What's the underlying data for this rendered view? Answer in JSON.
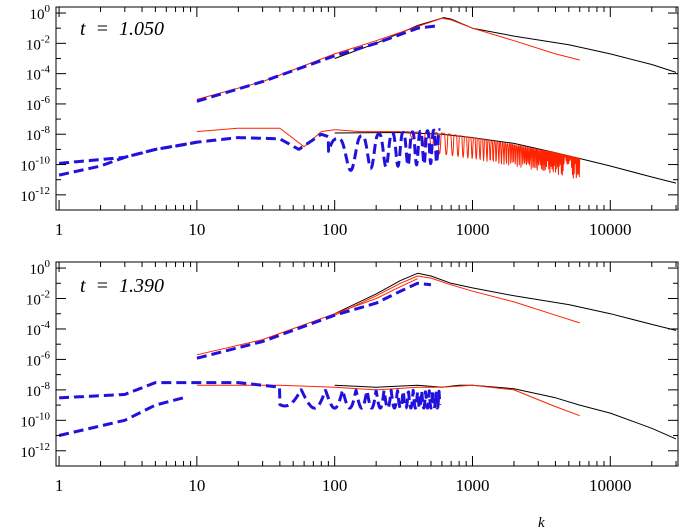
{
  "colors": {
    "black": "#000000",
    "red": "#ff2200",
    "blue": "#2211dd"
  },
  "chart_data": [
    {
      "type": "line",
      "annotation": "t  =  1.050",
      "xscale": "log",
      "yscale": "log",
      "xlim": [
        0.95,
        31000
      ],
      "ylim": [
        1e-13,
        2.5
      ],
      "grid": false,
      "x_ticks": [
        {
          "value": 1,
          "label": "1"
        },
        {
          "value": 10,
          "label": "10"
        },
        {
          "value": 100,
          "label": "100"
        },
        {
          "value": 1000,
          "label": "1000"
        },
        {
          "value": 10000,
          "label": "10000"
        }
      ],
      "y_ticks": [
        {
          "value": 1.0,
          "base": "10",
          "exp": "0"
        },
        {
          "value": 0.01,
          "base": "10",
          "exp": "-2"
        },
        {
          "value": 0.0001,
          "base": "10",
          "exp": "-4"
        },
        {
          "value": 1e-06,
          "base": "10",
          "exp": "-6"
        },
        {
          "value": 1e-08,
          "base": "10",
          "exp": "-8"
        },
        {
          "value": 1e-10,
          "base": "10",
          "exp": "-10"
        },
        {
          "value": 1e-12,
          "base": "10",
          "exp": "-12"
        }
      ],
      "xlabel": "",
      "series": [
        {
          "color": "black",
          "style": "solid",
          "width": 1,
          "x": [
            100,
            200,
            400,
            620,
            700,
            1000,
            2000,
            5000,
            10000,
            20000,
            30000
          ],
          "y": [
            0.001,
            0.01,
            0.15,
            0.5,
            0.4,
            0.1,
            0.03,
            0.008,
            0.002,
            0.0004,
            0.00012
          ]
        },
        {
          "color": "red",
          "style": "solid",
          "width": 1,
          "x": [
            10,
            30,
            100,
            200,
            400,
            600,
            700,
            1000,
            2000,
            4000,
            6000
          ],
          "y": [
            2e-06,
            3e-05,
            0.002,
            0.015,
            0.13,
            0.45,
            0.35,
            0.1,
            0.015,
            0.002,
            0.0008
          ]
        },
        {
          "color": "blue",
          "style": "dashed",
          "width": 3,
          "x": [
            10,
            30,
            100,
            200,
            400,
            580
          ],
          "y": [
            1.5e-06,
            3e-05,
            0.0015,
            0.01,
            0.1,
            0.15
          ]
        },
        {
          "color": "black",
          "style": "solid",
          "width": 1,
          "x": [
            100,
            300,
            600,
            1000,
            2000,
            4000,
            6000,
            10000,
            20000,
            30000
          ],
          "y": [
            1.2e-08,
            1.3e-08,
            1e-08,
            6e-09,
            2.5e-09,
            6e-10,
            2.5e-10,
            8e-11,
            1.5e-11,
            6e-12
          ]
        },
        {
          "color": "red",
          "style": "solid",
          "width": 1,
          "oscillation": "deep-high-k",
          "x": [
            10,
            20,
            40,
            60,
            80,
            100,
            150,
            300,
            600,
            1000,
            2000,
            4000,
            6000
          ],
          "y": [
            1.5e-08,
            2.5e-08,
            2.5e-08,
            1.5e-09,
            1.5e-08,
            2e-08,
            1.5e-08,
            1.5e-08,
            1.2e-08,
            6e-09,
            2e-09,
            6e-10,
            2.5e-10
          ]
        },
        {
          "color": "blue",
          "style": "dashed",
          "width": 3,
          "oscillation": "deep-low-k",
          "x": [
            1,
            3,
            5,
            10,
            20,
            40,
            55,
            80,
            100,
            200,
            400,
            580
          ],
          "y": [
            1.2e-10,
            3e-10,
            1e-09,
            3e-09,
            6e-09,
            5e-09,
            1e-09,
            1e-08,
            5e-09,
            1e-08,
            1.5e-08,
            2e-08
          ]
        },
        {
          "color": "blue",
          "style": "dashed",
          "width": 3,
          "x": [
            1,
            2,
            3,
            5,
            8,
            10
          ],
          "y": [
            2e-11,
            8e-11,
            3e-10,
            1e-09,
            2e-09,
            3e-09
          ]
        }
      ]
    },
    {
      "type": "line",
      "annotation": "t  =  1.390",
      "xscale": "log",
      "yscale": "log",
      "xlim": [
        0.95,
        31000
      ],
      "ylim": [
        1e-13,
        2.5
      ],
      "grid": false,
      "x_ticks": [
        {
          "value": 1,
          "label": "1"
        },
        {
          "value": 10,
          "label": "10"
        },
        {
          "value": 100,
          "label": "100"
        },
        {
          "value": 1000,
          "label": "1000"
        },
        {
          "value": 10000,
          "label": "10000"
        }
      ],
      "y_ticks": [
        {
          "value": 1.0,
          "base": "10",
          "exp": "0"
        },
        {
          "value": 0.01,
          "base": "10",
          "exp": "-2"
        },
        {
          "value": 0.0001,
          "base": "10",
          "exp": "-4"
        },
        {
          "value": 1e-06,
          "base": "10",
          "exp": "-6"
        },
        {
          "value": 1e-08,
          "base": "10",
          "exp": "-8"
        },
        {
          "value": 1e-10,
          "base": "10",
          "exp": "-10"
        },
        {
          "value": 1e-12,
          "base": "10",
          "exp": "-12"
        }
      ],
      "xlabel": "k",
      "series": [
        {
          "color": "black",
          "style": "solid",
          "width": 1,
          "x": [
            100,
            200,
            300,
            400,
            500,
            700,
            1000,
            2000,
            5000,
            10000,
            20000,
            30000
          ],
          "y": [
            0.001,
            0.02,
            0.15,
            0.45,
            0.3,
            0.1,
            0.05,
            0.015,
            0.004,
            0.001,
            0.0002,
            8e-05
          ]
        },
        {
          "color": "red",
          "style": "solid",
          "width": 1,
          "x": [
            100,
            200,
            300,
            400,
            500,
            700,
            1000,
            2000,
            4000,
            6000
          ],
          "y": [
            0.0008,
            0.015,
            0.1,
            0.3,
            0.22,
            0.08,
            0.03,
            0.006,
            0.0008,
            0.00025
          ]
        },
        {
          "color": "red",
          "style": "solid",
          "width": 1,
          "x": [
            10,
            30,
            100,
            200,
            300,
            400
          ],
          "y": [
            2e-06,
            2e-05,
            0.001,
            0.01,
            0.06,
            0.2
          ]
        },
        {
          "color": "blue",
          "style": "dashed",
          "width": 3,
          "x": [
            10,
            30,
            100,
            200,
            300,
            400,
            500
          ],
          "y": [
            1.2e-06,
            1.5e-05,
            0.0008,
            0.005,
            0.03,
            0.1,
            0.08
          ]
        },
        {
          "color": "black",
          "style": "solid",
          "width": 1,
          "x": [
            100,
            200,
            400,
            600,
            800,
            1000,
            2000,
            4000,
            6000,
            10000,
            20000,
            30000
          ],
          "y": [
            2e-08,
            1.5e-08,
            2e-08,
            1.5e-08,
            2e-08,
            2e-08,
            1.2e-08,
            3e-09,
            1e-09,
            3e-10,
            3e-11,
            6e-12
          ]
        },
        {
          "color": "red",
          "style": "solid",
          "width": 1,
          "x": [
            10,
            20,
            40,
            100,
            200,
            400,
            600,
            1000,
            2000,
            4000,
            6000
          ],
          "y": [
            2e-08,
            2e-08,
            2e-08,
            1.5e-08,
            1e-08,
            1.5e-08,
            1.5e-08,
            2e-08,
            1e-08,
            8e-10,
            2e-10
          ]
        },
        {
          "color": "blue",
          "style": "dashed",
          "width": 3,
          "oscillation": "dense-mid-k",
          "x": [
            1,
            3,
            5,
            8,
            10,
            20,
            40,
            60,
            100,
            200,
            400,
            580
          ],
          "y": [
            3e-09,
            5e-09,
            3e-08,
            3e-08,
            3e-08,
            3e-08,
            1.5e-08,
            1e-08,
            1e-08,
            1e-08,
            1e-08,
            1e-08
          ]
        },
        {
          "color": "blue",
          "style": "dashed",
          "width": 3,
          "x": [
            1,
            3,
            5,
            8
          ],
          "y": [
            1e-11,
            1e-10,
            1e-09,
            3e-09
          ]
        }
      ]
    }
  ]
}
